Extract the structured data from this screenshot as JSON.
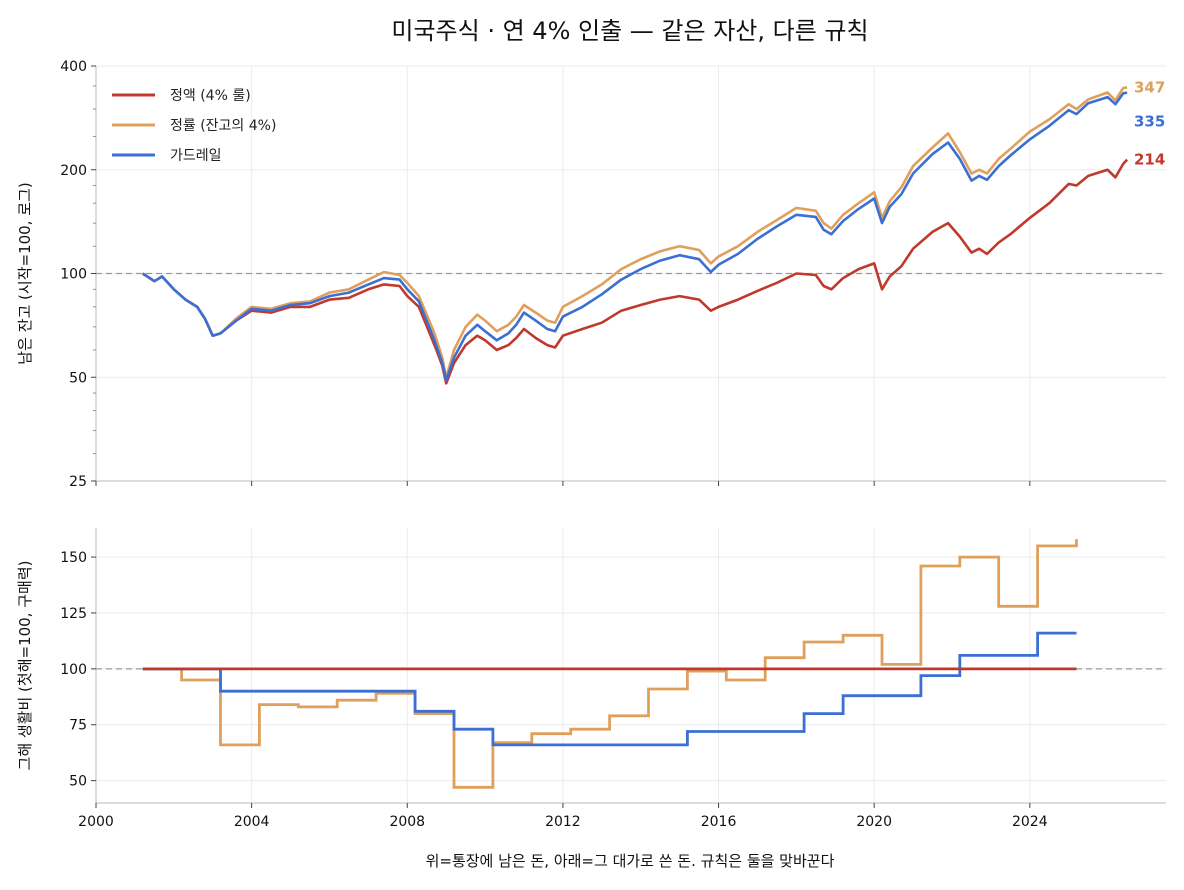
{
  "chart_data": [
    {
      "type": "line",
      "title": "미국주식 · 연 4% 인출 — 같은 자산, 다른 규칙",
      "caption": "위=통장에 남은 돈, 아래=그 대가로 쓴 돈. 규칙은 둘을 맞바꾼다",
      "ylabel": "남은 잔고 (시작=100, 로그)",
      "yscale": "log",
      "ylim": [
        25,
        400
      ],
      "xlim": [
        2000,
        2027.5
      ],
      "yticks": [
        25,
        50,
        100,
        200,
        400
      ],
      "ytick_labels": [
        "25",
        "50",
        "100",
        "200",
        "400"
      ],
      "reference_line": 100,
      "grid": true,
      "legend": "upper-left",
      "series": [
        {
          "name": "정액 (4% 룰)",
          "color": "#c0392b",
          "end_label": "214",
          "x": [
            2001.2,
            2001.5,
            2001.7,
            2002.0,
            2002.3,
            2002.6,
            2002.8,
            2003.0,
            2003.2,
            2003.6,
            2004.0,
            2004.5,
            2005.0,
            2005.5,
            2006.0,
            2006.5,
            2007.0,
            2007.4,
            2007.8,
            2008.0,
            2008.3,
            2008.7,
            2008.9,
            2009.0,
            2009.2,
            2009.5,
            2009.8,
            2010.0,
            2010.3,
            2010.6,
            2010.8,
            2011.0,
            2011.3,
            2011.6,
            2011.8,
            2012.0,
            2012.5,
            2013.0,
            2013.5,
            2014.0,
            2014.5,
            2015.0,
            2015.5,
            2015.8,
            2016.0,
            2016.5,
            2017.0,
            2017.5,
            2018.0,
            2018.5,
            2018.7,
            2018.9,
            2019.2,
            2019.6,
            2020.0,
            2020.2,
            2020.4,
            2020.7,
            2021.0,
            2021.5,
            2021.9,
            2022.2,
            2022.5,
            2022.7,
            2022.9,
            2023.2,
            2023.5,
            2024.0,
            2024.5,
            2025.0,
            2025.2,
            2025.5,
            2026.0,
            2026.2,
            2026.4,
            2026.5
          ],
          "values": [
            100,
            95,
            98,
            90,
            84,
            80,
            74,
            66,
            67,
            73,
            78,
            77,
            80,
            80,
            84,
            85,
            90,
            93,
            92,
            86,
            80,
            62,
            54,
            48,
            55,
            62,
            66,
            64,
            60,
            62,
            65,
            69,
            65,
            62,
            61,
            66,
            69,
            72,
            78,
            81,
            84,
            86,
            84,
            78,
            80,
            84,
            89,
            94,
            100,
            99,
            92,
            90,
            97,
            103,
            107,
            90,
            98,
            105,
            118,
            132,
            140,
            128,
            115,
            118,
            114,
            123,
            130,
            145,
            160,
            182,
            180,
            192,
            200,
            190,
            208,
            214
          ]
        },
        {
          "name": "정률 (잔고의 4%)",
          "color": "#dfa05c",
          "end_label": "347",
          "x": [
            2001.2,
            2001.5,
            2001.7,
            2002.0,
            2002.3,
            2002.6,
            2002.8,
            2003.0,
            2003.2,
            2003.6,
            2004.0,
            2004.5,
            2005.0,
            2005.5,
            2006.0,
            2006.5,
            2007.0,
            2007.4,
            2007.8,
            2008.0,
            2008.3,
            2008.7,
            2008.9,
            2009.0,
            2009.2,
            2009.5,
            2009.8,
            2010.0,
            2010.3,
            2010.6,
            2010.8,
            2011.0,
            2011.3,
            2011.6,
            2011.8,
            2012.0,
            2012.5,
            2013.0,
            2013.5,
            2014.0,
            2014.5,
            2015.0,
            2015.5,
            2015.8,
            2016.0,
            2016.5,
            2017.0,
            2017.5,
            2018.0,
            2018.5,
            2018.7,
            2018.9,
            2019.2,
            2019.6,
            2020.0,
            2020.2,
            2020.4,
            2020.7,
            2021.0,
            2021.5,
            2021.9,
            2022.2,
            2022.5,
            2022.7,
            2022.9,
            2023.2,
            2023.5,
            2024.0,
            2024.5,
            2025.0,
            2025.2,
            2025.5,
            2026.0,
            2026.2,
            2026.4,
            2026.5
          ],
          "values": [
            100,
            95,
            98,
            90,
            84,
            80,
            74,
            66,
            67,
            74,
            80,
            79,
            82,
            83,
            88,
            90,
            96,
            101,
            99,
            94,
            86,
            67,
            57,
            50,
            60,
            70,
            76,
            73,
            68,
            71,
            75,
            81,
            77,
            73,
            72,
            80,
            86,
            93,
            103,
            110,
            116,
            120,
            117,
            107,
            112,
            120,
            132,
            143,
            155,
            152,
            140,
            135,
            148,
            160,
            172,
            145,
            162,
            178,
            205,
            232,
            255,
            225,
            195,
            200,
            195,
            215,
            230,
            258,
            280,
            310,
            300,
            320,
            335,
            318,
            345,
            347
          ]
        },
        {
          "name": "가드레일",
          "color": "#3b6fd4",
          "end_label": "335",
          "x": [
            2001.2,
            2001.5,
            2001.7,
            2002.0,
            2002.3,
            2002.6,
            2002.8,
            2003.0,
            2003.2,
            2003.6,
            2004.0,
            2004.5,
            2005.0,
            2005.5,
            2006.0,
            2006.5,
            2007.0,
            2007.4,
            2007.8,
            2008.0,
            2008.3,
            2008.7,
            2008.9,
            2009.0,
            2009.2,
            2009.5,
            2009.8,
            2010.0,
            2010.3,
            2010.6,
            2010.8,
            2011.0,
            2011.3,
            2011.6,
            2011.8,
            2012.0,
            2012.5,
            2013.0,
            2013.5,
            2014.0,
            2014.5,
            2015.0,
            2015.5,
            2015.8,
            2016.0,
            2016.5,
            2017.0,
            2017.5,
            2018.0,
            2018.5,
            2018.7,
            2018.9,
            2019.2,
            2019.6,
            2020.0,
            2020.2,
            2020.4,
            2020.7,
            2021.0,
            2021.5,
            2021.9,
            2022.2,
            2022.5,
            2022.7,
            2022.9,
            2023.2,
            2023.5,
            2024.0,
            2024.5,
            2025.0,
            2025.2,
            2025.5,
            2026.0,
            2026.2,
            2026.4,
            2026.5
          ],
          "values": [
            100,
            95,
            98,
            90,
            84,
            80,
            74,
            66,
            67,
            73,
            79,
            78,
            81,
            82,
            86,
            88,
            93,
            97,
            96,
            90,
            83,
            64,
            55,
            49,
            57,
            66,
            71,
            68,
            64,
            67,
            71,
            77,
            73,
            69,
            68,
            75,
            80,
            87,
            96,
            103,
            109,
            113,
            110,
            101,
            106,
            114,
            126,
            137,
            148,
            146,
            134,
            130,
            142,
            154,
            165,
            140,
            156,
            170,
            195,
            222,
            240,
            215,
            186,
            192,
            187,
            205,
            220,
            245,
            268,
            298,
            290,
            312,
            325,
            310,
            333,
            335
          ]
        }
      ]
    },
    {
      "type": "line",
      "ylabel": "그해 생활비 (첫해=100, 구매력)",
      "ylim": [
        40,
        163
      ],
      "xlim": [
        2000,
        2027.5
      ],
      "yticks": [
        50,
        75,
        100,
        125,
        150
      ],
      "ytick_labels": [
        "50",
        "75",
        "100",
        "125",
        "150"
      ],
      "xticks": [
        2000,
        2004,
        2008,
        2012,
        2016,
        2020,
        2024
      ],
      "xtick_labels": [
        "2000",
        "2004",
        "2008",
        "2012",
        "2016",
        "2020",
        "2024"
      ],
      "reference_line": 100,
      "grid": true,
      "step": true,
      "series": [
        {
          "name": "정액 (4% 룰)",
          "color": "#c0392b",
          "x": [
            2001.2,
            2025.2
          ],
          "values": [
            100,
            100
          ]
        },
        {
          "name": "정률 (잔고의 4%)",
          "color": "#dfa05c",
          "x": [
            2001.2,
            2002.2,
            2003.2,
            2004.2,
            2005.2,
            2006.2,
            2007.2,
            2008.2,
            2009.2,
            2010.2,
            2011.2,
            2012.2,
            2013.2,
            2014.2,
            2015.2,
            2016.2,
            2017.2,
            2018.2,
            2019.2,
            2020.2,
            2021.2,
            2022.2,
            2023.2,
            2024.2,
            2025.2
          ],
          "values": [
            100,
            95,
            66,
            84,
            83,
            86,
            89,
            80,
            47,
            67,
            71,
            73,
            79,
            91,
            99,
            95,
            105,
            112,
            115,
            102,
            146,
            150,
            128,
            155,
            158
          ]
        },
        {
          "name": "가드레일",
          "color": "#3b6fd4",
          "x": [
            2001.2,
            2003.2,
            2008.2,
            2009.2,
            2010.2,
            2015.2,
            2018.2,
            2019.2,
            2021.2,
            2022.2,
            2024.2,
            2025.2
          ],
          "values": [
            100,
            90,
            81,
            73,
            66,
            72,
            80,
            88,
            97,
            106,
            116,
            116
          ]
        }
      ]
    }
  ]
}
